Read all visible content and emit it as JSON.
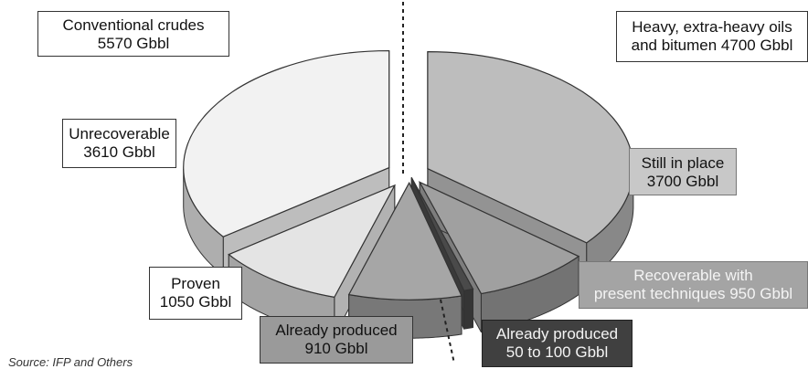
{
  "chart_data": {
    "type": "pie",
    "groups": [
      {
        "label_line1": "Conventional crudes",
        "label_line2": "5570 Gbbl",
        "total": 5570
      },
      {
        "label_line1": "Heavy, extra-heavy oils",
        "label_line2": "and bitumen 4700 Gbbl",
        "total": 4700
      }
    ],
    "slices": [
      {
        "group": 0,
        "line1": "Unrecoverable",
        "line2": "3610 Gbbl",
        "value": 3610,
        "color": "#f2f2f2"
      },
      {
        "group": 0,
        "line1": "Proven",
        "line2": "1050 Gbbl",
        "value": 1050,
        "color": "#e4e4e4"
      },
      {
        "group": 0,
        "line1": "Already produced",
        "line2": "910 Gbbl",
        "value": 910,
        "color": "#a6a6a6"
      },
      {
        "group": 1,
        "line1": "Already produced",
        "line2": "50 to 100 Gbbl",
        "value": 75,
        "color": "#4a4a4a"
      },
      {
        "group": 1,
        "line1": "Recoverable with",
        "line2": "present techniques 950 Gbbl",
        "value": 950,
        "color": "#a0a0a0"
      },
      {
        "group": 1,
        "line1": "Still in place",
        "line2": "3700 Gbbl",
        "value": 3700,
        "color": "#bdbdbd"
      }
    ],
    "source": "Source: IFP and Others",
    "title": "",
    "legend": "none"
  }
}
